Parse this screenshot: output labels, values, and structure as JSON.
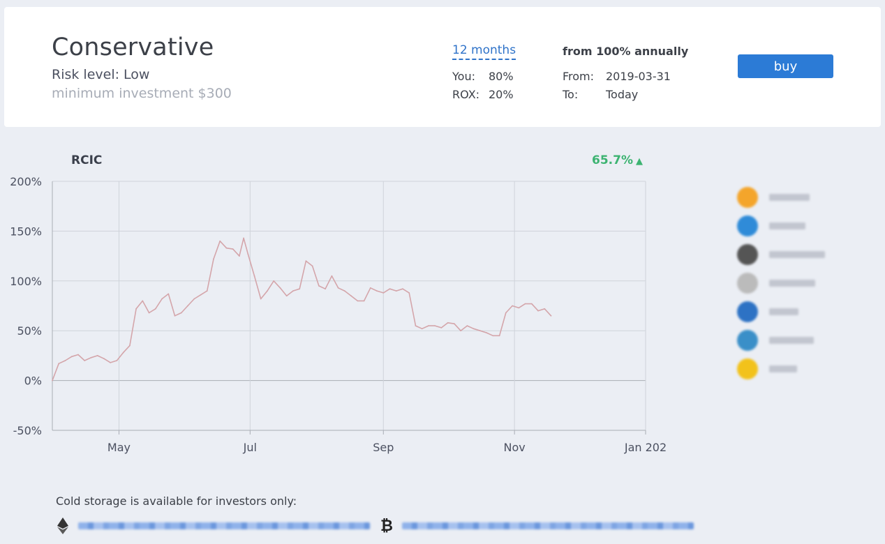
{
  "plan": {
    "title": "Conservative",
    "risk_level": "Risk level: Low",
    "min_investment": "minimum investment $300"
  },
  "period": {
    "label": "12 months",
    "you_label": "You:",
    "you_value": "80%",
    "rox_label": "ROX:",
    "rox_value": "20%"
  },
  "returns": {
    "header": "from 100% annually",
    "from_label": "From:",
    "from_value": "2019-03-31",
    "to_label": "To:",
    "to_value": "Today"
  },
  "buy_label": "buy",
  "chart_header": {
    "name": "RCIC",
    "performance": "65.7%",
    "performance_color": "#3cb371"
  },
  "chart_data": {
    "type": "line",
    "title": "RCIC",
    "xlabel": "",
    "ylabel": "",
    "y_ticks": [
      "200%",
      "150%",
      "100%",
      "50%",
      "0%",
      "-50%"
    ],
    "x_ticks": [
      "May",
      "Jul",
      "Sep",
      "Nov",
      "Jan 202"
    ],
    "ylim": [
      -50,
      200
    ],
    "grid": true,
    "line_color": "#d4a5aa",
    "series": [
      {
        "x": [
          "2019-03-31",
          "2019-04-03",
          "2019-04-06",
          "2019-04-09",
          "2019-04-12",
          "2019-04-15",
          "2019-04-18",
          "2019-04-21",
          "2019-04-24",
          "2019-04-27",
          "2019-04-30",
          "2019-05-03",
          "2019-05-06",
          "2019-05-09",
          "2019-05-12",
          "2019-05-15",
          "2019-05-18",
          "2019-05-21",
          "2019-05-24",
          "2019-05-27",
          "2019-05-30",
          "2019-06-02",
          "2019-06-05",
          "2019-06-08",
          "2019-06-11",
          "2019-06-14",
          "2019-06-17",
          "2019-06-20",
          "2019-06-23",
          "2019-06-26",
          "2019-06-28",
          "2019-06-30",
          "2019-07-03",
          "2019-07-06",
          "2019-07-09",
          "2019-07-12",
          "2019-07-15",
          "2019-07-18",
          "2019-07-21",
          "2019-07-24",
          "2019-07-27",
          "2019-07-30",
          "2019-08-02",
          "2019-08-05",
          "2019-08-08",
          "2019-08-11",
          "2019-08-14",
          "2019-08-17",
          "2019-08-20",
          "2019-08-23",
          "2019-08-26",
          "2019-08-29",
          "2019-09-01",
          "2019-09-04",
          "2019-09-07",
          "2019-09-10",
          "2019-09-13",
          "2019-09-16",
          "2019-09-19",
          "2019-09-22",
          "2019-09-25",
          "2019-09-28",
          "2019-10-01",
          "2019-10-04",
          "2019-10-07",
          "2019-10-10",
          "2019-10-13",
          "2019-10-16",
          "2019-10-19",
          "2019-10-22",
          "2019-10-25",
          "2019-10-28",
          "2019-10-31",
          "2019-11-03",
          "2019-11-06",
          "2019-11-09",
          "2019-11-12",
          "2019-11-15",
          "2019-11-18"
        ],
        "values": [
          0,
          17,
          20,
          24,
          26,
          20,
          23,
          25,
          22,
          18,
          20,
          28,
          35,
          72,
          80,
          68,
          72,
          82,
          87,
          65,
          68,
          75,
          82,
          86,
          90,
          122,
          140,
          133,
          132,
          125,
          143,
          127,
          105,
          82,
          90,
          100,
          93,
          85,
          90,
          92,
          120,
          115,
          95,
          92,
          105,
          93,
          90,
          85,
          80,
          80,
          93,
          90,
          88,
          92,
          90,
          92,
          88,
          55,
          52,
          55,
          55,
          53,
          58,
          57,
          50,
          55,
          52,
          50,
          48,
          45,
          45,
          68,
          75,
          73,
          77,
          77,
          70,
          72,
          65
        ]
      }
    ]
  },
  "legend_icons": [
    "bitcoin-icon",
    "ripple-icon",
    "ethereum-icon",
    "litecoin-icon",
    "dash-icon",
    "cryptocurrency-icon",
    "yellow-coin-icon"
  ],
  "legend_icon_colors": [
    "#f4a52b",
    "#2f8bd8",
    "#555555",
    "#bbbbbb",
    "#2d72c4",
    "#3a8fc8",
    "#f2c21b"
  ],
  "cold_storage_note": "Cold storage is available for investors only:"
}
